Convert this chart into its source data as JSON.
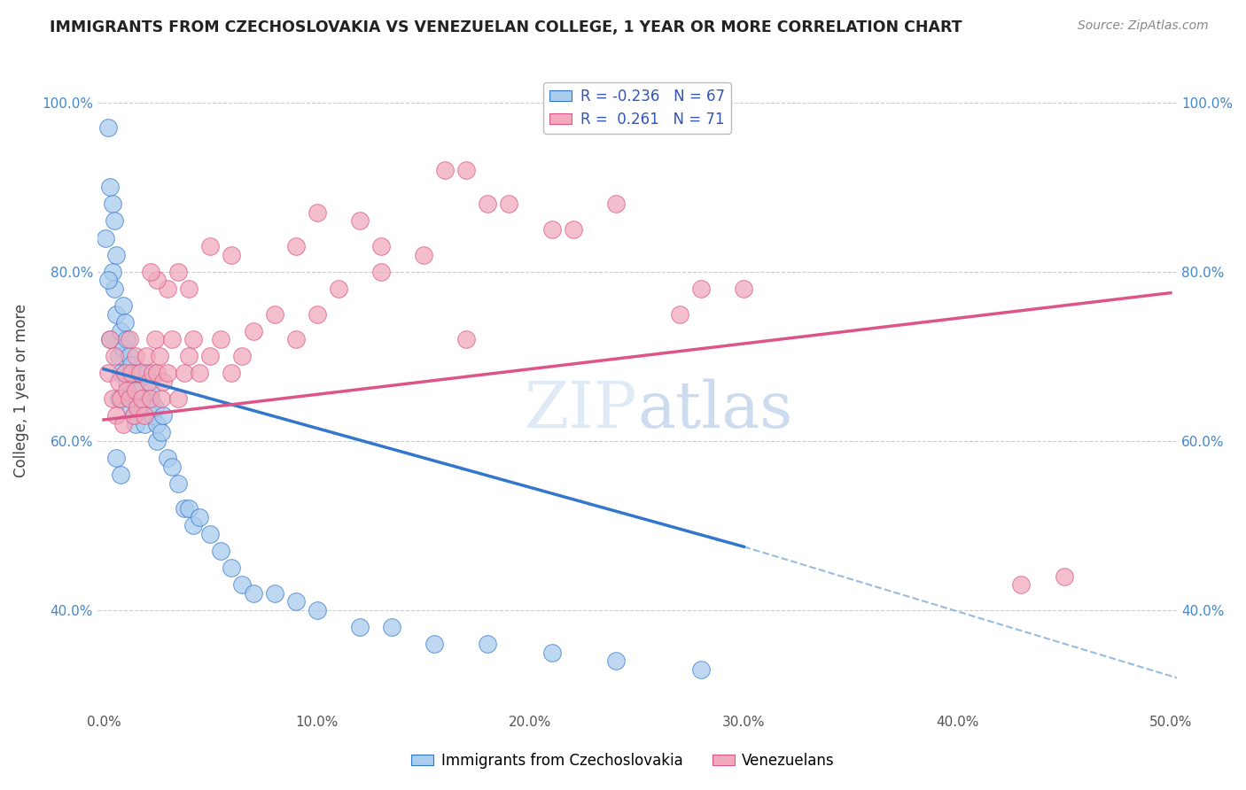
{
  "title": "IMMIGRANTS FROM CZECHOSLOVAKIA VS VENEZUELAN COLLEGE, 1 YEAR OR MORE CORRELATION CHART",
  "source": "Source: ZipAtlas.com",
  "ylabel": "College, 1 year or more",
  "legend_xlabel": "Immigrants from Czechoslovakia",
  "legend_ylabel": "Venezuelans",
  "r1": -0.236,
  "n1": 67,
  "r2": 0.261,
  "n2": 71,
  "color1": "#aaccee",
  "color2": "#f0aabb",
  "line_color1": "#3377cc",
  "line_color2": "#dd5588",
  "dashed_color": "#99bbdd",
  "xlim": [
    -0.003,
    0.503
  ],
  "ylim": [
    0.28,
    1.04
  ],
  "xticks": [
    0.0,
    0.1,
    0.2,
    0.3,
    0.4,
    0.5
  ],
  "xtick_labels": [
    "0.0%",
    "10.0%",
    "20.0%",
    "30.0%",
    "40.0%",
    "50.0%"
  ],
  "yticks": [
    0.4,
    0.6,
    0.8,
    1.0
  ],
  "ytick_labels": [
    "40.0%",
    "60.0%",
    "80.0%",
    "100.0%"
  ],
  "blue_line_x": [
    0.0,
    0.3
  ],
  "blue_line_y": [
    0.685,
    0.475
  ],
  "pink_line_x": [
    0.0,
    0.5
  ],
  "pink_line_y": [
    0.625,
    0.775
  ],
  "dash_line_x": [
    0.3,
    0.503
  ],
  "dash_line_y": [
    0.475,
    0.32
  ],
  "blue_scatter_x": [
    0.002,
    0.003,
    0.004,
    0.004,
    0.005,
    0.005,
    0.006,
    0.006,
    0.007,
    0.007,
    0.008,
    0.008,
    0.009,
    0.009,
    0.01,
    0.01,
    0.011,
    0.011,
    0.012,
    0.012,
    0.013,
    0.013,
    0.014,
    0.014,
    0.015,
    0.015,
    0.016,
    0.016,
    0.017,
    0.018,
    0.019,
    0.02,
    0.021,
    0.022,
    0.023,
    0.024,
    0.025,
    0.025,
    0.027,
    0.028,
    0.03,
    0.032,
    0.035,
    0.038,
    0.04,
    0.042,
    0.045,
    0.05,
    0.055,
    0.06,
    0.065,
    0.07,
    0.08,
    0.09,
    0.1,
    0.12,
    0.135,
    0.155,
    0.18,
    0.21,
    0.24,
    0.28,
    0.001,
    0.002,
    0.003,
    0.006,
    0.008
  ],
  "blue_scatter_y": [
    0.97,
    0.72,
    0.88,
    0.8,
    0.86,
    0.78,
    0.82,
    0.75,
    0.7,
    0.65,
    0.73,
    0.68,
    0.76,
    0.71,
    0.74,
    0.68,
    0.72,
    0.67,
    0.7,
    0.65,
    0.69,
    0.64,
    0.68,
    0.63,
    0.66,
    0.62,
    0.68,
    0.64,
    0.66,
    0.64,
    0.62,
    0.68,
    0.65,
    0.66,
    0.63,
    0.64,
    0.62,
    0.6,
    0.61,
    0.63,
    0.58,
    0.57,
    0.55,
    0.52,
    0.52,
    0.5,
    0.51,
    0.49,
    0.47,
    0.45,
    0.43,
    0.42,
    0.42,
    0.41,
    0.4,
    0.38,
    0.38,
    0.36,
    0.36,
    0.35,
    0.34,
    0.33,
    0.84,
    0.79,
    0.9,
    0.58,
    0.56
  ],
  "pink_scatter_x": [
    0.002,
    0.003,
    0.004,
    0.005,
    0.006,
    0.007,
    0.008,
    0.009,
    0.01,
    0.011,
    0.012,
    0.012,
    0.013,
    0.014,
    0.015,
    0.015,
    0.016,
    0.017,
    0.018,
    0.019,
    0.02,
    0.021,
    0.022,
    0.023,
    0.024,
    0.025,
    0.026,
    0.027,
    0.028,
    0.03,
    0.032,
    0.035,
    0.038,
    0.04,
    0.042,
    0.045,
    0.05,
    0.055,
    0.06,
    0.065,
    0.07,
    0.08,
    0.09,
    0.1,
    0.11,
    0.13,
    0.15,
    0.17,
    0.19,
    0.21,
    0.24,
    0.27,
    0.3,
    0.17,
    0.28,
    0.22,
    0.18,
    0.16,
    0.13,
    0.12,
    0.1,
    0.09,
    0.06,
    0.05,
    0.04,
    0.035,
    0.03,
    0.025,
    0.022,
    0.45,
    0.43
  ],
  "pink_scatter_y": [
    0.68,
    0.72,
    0.65,
    0.7,
    0.63,
    0.67,
    0.65,
    0.62,
    0.68,
    0.66,
    0.72,
    0.65,
    0.68,
    0.63,
    0.7,
    0.66,
    0.64,
    0.68,
    0.65,
    0.63,
    0.7,
    0.67,
    0.65,
    0.68,
    0.72,
    0.68,
    0.7,
    0.65,
    0.67,
    0.68,
    0.72,
    0.65,
    0.68,
    0.7,
    0.72,
    0.68,
    0.7,
    0.72,
    0.68,
    0.7,
    0.73,
    0.75,
    0.72,
    0.75,
    0.78,
    0.8,
    0.82,
    0.72,
    0.88,
    0.85,
    0.88,
    0.75,
    0.78,
    0.92,
    0.78,
    0.85,
    0.88,
    0.92,
    0.83,
    0.86,
    0.87,
    0.83,
    0.82,
    0.83,
    0.78,
    0.8,
    0.78,
    0.79,
    0.8,
    0.44,
    0.43
  ]
}
